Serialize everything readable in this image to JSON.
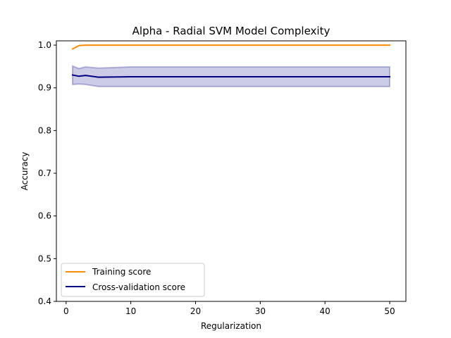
{
  "chart_data": {
    "type": "line",
    "title": "Alpha - Radial SVM Model Complexity",
    "xlabel": "Regularization",
    "ylabel": "Accuracy",
    "xlim": [
      -1.5,
      52.5
    ],
    "ylim": [
      0.4,
      1.01
    ],
    "xticks": [
      0,
      10,
      20,
      30,
      40,
      50
    ],
    "yticks": [
      0.4,
      0.5,
      0.6,
      0.7,
      0.8,
      0.9,
      1.0
    ],
    "x": [
      1,
      2,
      3,
      5,
      10,
      20,
      30,
      40,
      50
    ],
    "series": [
      {
        "name": "Training score",
        "color": "#ff8c00",
        "values": [
          0.991,
          0.999,
          1.0,
          1.0,
          1.0,
          1.0,
          1.0,
          1.0,
          1.0
        ]
      },
      {
        "name": "Cross-validation score",
        "color": "#000080",
        "values": [
          0.93,
          0.927,
          0.929,
          0.925,
          0.926,
          0.926,
          0.926,
          0.926,
          0.926
        ],
        "band_upper": [
          0.951,
          0.945,
          0.949,
          0.946,
          0.949,
          0.949,
          0.949,
          0.949,
          0.949
        ],
        "band_lower": [
          0.908,
          0.909,
          0.908,
          0.903,
          0.903,
          0.903,
          0.903,
          0.903,
          0.903
        ],
        "band_color": "#000080"
      }
    ],
    "legend_position": "lower-left",
    "grid": false
  }
}
